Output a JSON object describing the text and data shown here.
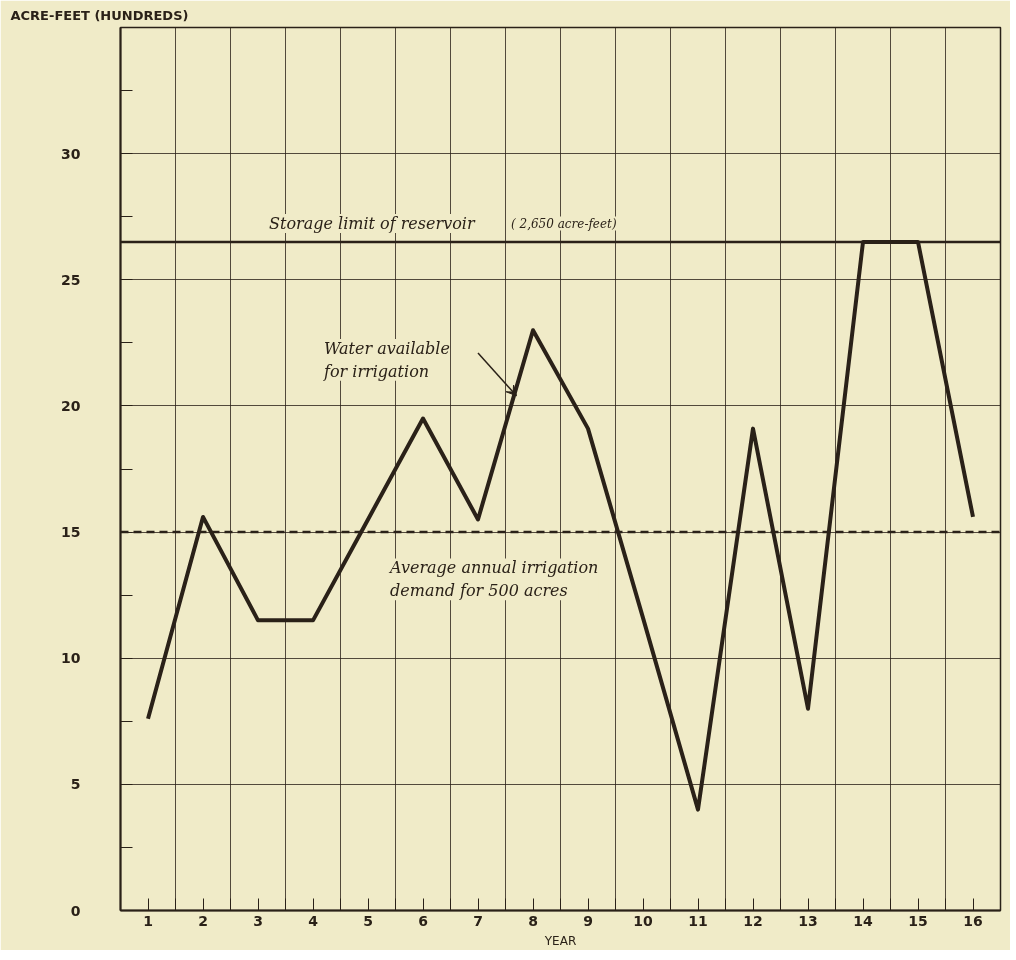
{
  "chart_data": {
    "type": "line",
    "xlabel": "YEAR",
    "ylabel": "ACRE-FEET (HUNDREDS)",
    "x": [
      1,
      2,
      3,
      4,
      5,
      6,
      7,
      8,
      9,
      10,
      11,
      12,
      13,
      14,
      15,
      16
    ],
    "series": [
      {
        "color": "#2a2118",
        "values": [
          7.6,
          15.6,
          11.5,
          11.5,
          15.5,
          19.5,
          15.5,
          23.0,
          19.1,
          11.6,
          4.0,
          19.1,
          8.0,
          26.5,
          26.5,
          15.6
        ]
      }
    ],
    "xlim": [
      0.5,
      16.5
    ],
    "xticks": [
      1,
      2,
      3,
      4,
      5,
      6,
      7,
      8,
      9,
      10,
      11,
      12,
      13,
      14,
      15,
      16,
      {
        "value": 1.5,
        "label": null
      },
      {
        "value": 2.5,
        "label": null
      },
      {
        "value": 3.5,
        "label": null
      },
      {
        "value": 4.5,
        "label": null
      },
      {
        "value": 5.5,
        "label": null
      },
      {
        "value": 6.5,
        "label": null
      },
      {
        "value": 7.5,
        "label": null
      },
      {
        "value": 8.5,
        "label": null
      },
      {
        "value": 9.5,
        "label": null
      },
      {
        "value": 10.5,
        "label": null
      },
      {
        "value": 11.5,
        "label": null
      },
      {
        "value": 12.5,
        "label": null
      },
      {
        "value": 13.5,
        "label": null
      },
      {
        "value": 14.5,
        "label": null
      },
      {
        "value": 15.5,
        "label": null
      }
    ],
    "ylim": [
      0,
      35
    ],
    "yticks": [
      0,
      5,
      10,
      15,
      20,
      25,
      30,
      {
        "value": 2.5,
        "label": null
      },
      {
        "value": 7.5,
        "label": null
      },
      {
        "value": 12.5,
        "label": null
      },
      {
        "value": 17.5,
        "label": null
      },
      {
        "value": 22.5,
        "label": null
      },
      {
        "value": 27.5,
        "label": null
      },
      {
        "value": 32.5,
        "label": null
      }
    ],
    "grid": true,
    "marker": "none",
    "line_style": "solid",
    "ref_lines": [
      {
        "axis": "y",
        "value": 26.5,
        "label": "Storage limit of reservoir",
        "color": "#2a2118",
        "line_style": "solid"
      },
      {
        "axis": "y",
        "value": 15,
        "label": "Average annual irrigation demand for 500 acres",
        "color": "#2a2118",
        "line_style": "dashed"
      }
    ],
    "annotations": [
      "( 2,650 acre-feet)",
      "Water available for irrigation"
    ]
  }
}
